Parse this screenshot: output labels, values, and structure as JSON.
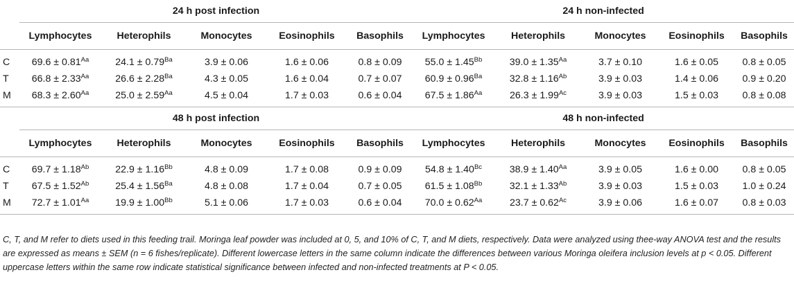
{
  "sections": [
    {
      "left_title": "24 h post infection",
      "right_title": "24 h non-infected",
      "columns": [
        "Lymphocytes",
        "Heterophils",
        "Monocytes",
        "Eosinophils",
        "Basophils"
      ],
      "rows": [
        {
          "label": "C",
          "left": [
            {
              "v": "69.6 ± 0.81",
              "s": "Aa"
            },
            {
              "v": "24.1 ± 0.79",
              "s": "Ba"
            },
            {
              "v": "3.9 ± 0.06",
              "s": ""
            },
            {
              "v": "1.6 ± 0.06",
              "s": ""
            },
            {
              "v": "0.8 ± 0.09",
              "s": ""
            }
          ],
          "right": [
            {
              "v": "55.0 ± 1.45",
              "s": "Bb"
            },
            {
              "v": "39.0 ± 1.35",
              "s": "Aa"
            },
            {
              "v": "3.7 ± 0.10",
              "s": ""
            },
            {
              "v": "1.6 ± 0.05",
              "s": ""
            },
            {
              "v": "0.8 ± 0.05",
              "s": ""
            }
          ]
        },
        {
          "label": "T",
          "left": [
            {
              "v": "66.8 ± 2.33",
              "s": "Aa"
            },
            {
              "v": "26.6 ± 2.28",
              "s": "Ba"
            },
            {
              "v": "4.3 ± 0.05",
              "s": ""
            },
            {
              "v": "1.6 ± 0.04",
              "s": ""
            },
            {
              "v": "0.7 ± 0.07",
              "s": ""
            }
          ],
          "right": [
            {
              "v": "60.9 ± 0.96",
              "s": "Ba"
            },
            {
              "v": "32.8 ± 1.16",
              "s": "Ab"
            },
            {
              "v": "3.9 ± 0.03",
              "s": ""
            },
            {
              "v": "1.4 ± 0.06",
              "s": ""
            },
            {
              "v": "0.9 ± 0.20",
              "s": ""
            }
          ]
        },
        {
          "label": "M",
          "left": [
            {
              "v": "68.3 ± 2.60",
              "s": "Aa"
            },
            {
              "v": "25.0 ± 2.59",
              "s": "Aa"
            },
            {
              "v": "4.5 ± 0.04",
              "s": ""
            },
            {
              "v": "1.7 ± 0.03",
              "s": ""
            },
            {
              "v": "0.6 ± 0.04",
              "s": ""
            }
          ],
          "right": [
            {
              "v": "67.5 ± 1.86",
              "s": "Aa"
            },
            {
              "v": "26.3 ± 1.99",
              "s": "Ac"
            },
            {
              "v": "3.9 ± 0.03",
              "s": ""
            },
            {
              "v": "1.5 ± 0.03",
              "s": ""
            },
            {
              "v": "0.8 ± 0.08",
              "s": ""
            }
          ]
        }
      ]
    },
    {
      "left_title": "48 h post infection",
      "right_title": "48 h non-infected",
      "columns": [
        "Lymphocytes",
        "Heterophils",
        "Monocytes",
        "Eosinophils",
        "Basophils"
      ],
      "rows": [
        {
          "label": "C",
          "left": [
            {
              "v": "69.7 ± 1.18",
              "s": "Ab"
            },
            {
              "v": "22.9 ± 1.16",
              "s": "Bb"
            },
            {
              "v": "4.8 ± 0.09",
              "s": ""
            },
            {
              "v": "1.7 ± 0.08",
              "s": ""
            },
            {
              "v": "0.9 ± 0.09",
              "s": ""
            }
          ],
          "right": [
            {
              "v": "54.8 ± 1.40",
              "s": "Bc"
            },
            {
              "v": "38.9 ± 1.40",
              "s": "Aa"
            },
            {
              "v": "3.9 ± 0.05",
              "s": ""
            },
            {
              "v": "1.6 ± 0.00",
              "s": ""
            },
            {
              "v": "0.8 ± 0.05",
              "s": ""
            }
          ]
        },
        {
          "label": "T",
          "left": [
            {
              "v": "67.5 ± 1.52",
              "s": "Ab"
            },
            {
              "v": "25.4 ± 1.56",
              "s": "Ba"
            },
            {
              "v": "4.8 ± 0.08",
              "s": ""
            },
            {
              "v": "1.7 ± 0.04",
              "s": ""
            },
            {
              "v": "0.7 ± 0.05",
              "s": ""
            }
          ],
          "right": [
            {
              "v": "61.5 ± 1.08",
              "s": "Bb"
            },
            {
              "v": "32.1 ± 1.33",
              "s": "Ab"
            },
            {
              "v": "3.9 ± 0.03",
              "s": ""
            },
            {
              "v": "1.5 ± 0.03",
              "s": ""
            },
            {
              "v": "1.0 ± 0.24",
              "s": ""
            }
          ]
        },
        {
          "label": "M",
          "left": [
            {
              "v": "72.7 ± 1.01",
              "s": "Aa"
            },
            {
              "v": "19.9 ± 1.00",
              "s": "Bb"
            },
            {
              "v": "5.1 ± 0.06",
              "s": ""
            },
            {
              "v": "1.7 ± 0.03",
              "s": ""
            },
            {
              "v": "0.6 ± 0.04",
              "s": ""
            }
          ],
          "right": [
            {
              "v": "70.0 ± 0.62",
              "s": "Aa"
            },
            {
              "v": "23.7 ± 0.62",
              "s": "Ac"
            },
            {
              "v": "3.9 ± 0.06",
              "s": ""
            },
            {
              "v": "1.6 ± 0.07",
              "s": ""
            },
            {
              "v": "0.8 ± 0.03",
              "s": ""
            }
          ]
        }
      ]
    }
  ],
  "footnote": "C, T, and M refer to diets used in this feeding trail. Moringa leaf powder was included at 0, 5, and 10% of C, T, and M diets, respectively. Data were analyzed using thee-way ANOVA test and the results are expressed as means ± SEM (n = 6 fishes/replicate). Different lowercase letters in the same column indicate the differences between various Moringa oleifera inclusion levels at p < 0.05. Different uppercase letters within the same row indicate statistical significance between infected and non-infected treatments at P < 0.05."
}
